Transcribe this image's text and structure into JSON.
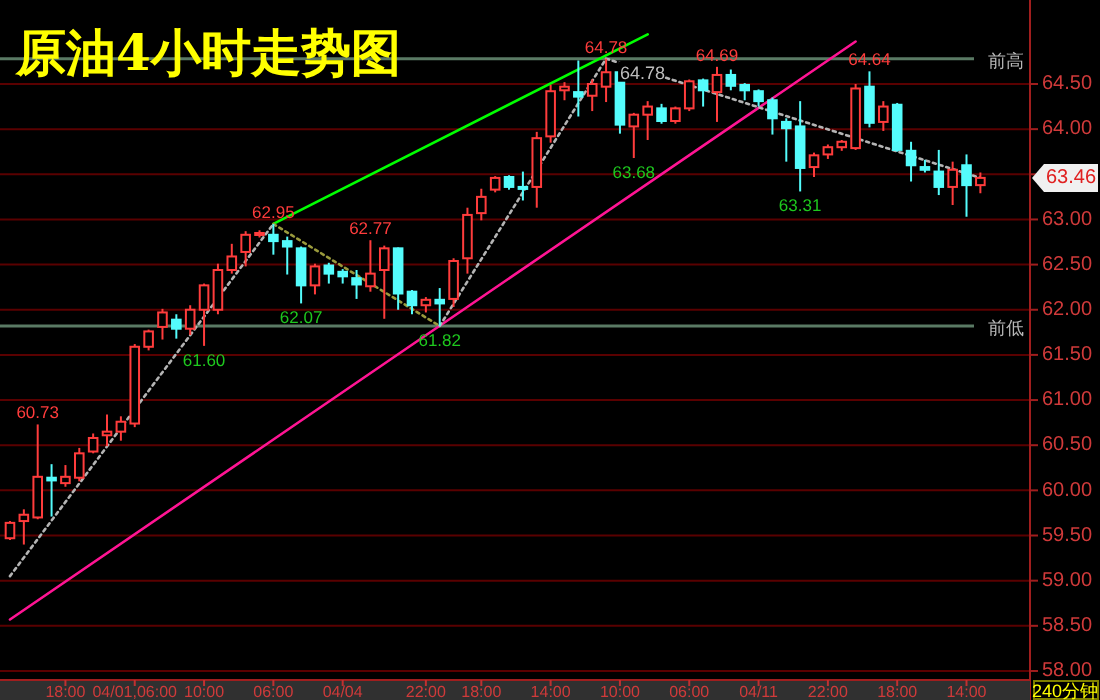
{
  "chart_data": {
    "type": "candlestick",
    "title": "原油4小时走势图",
    "categories": [
      null,
      null,
      null,
      null,
      "18:00",
      null,
      null,
      null,
      null,
      "04/01,06:00",
      null,
      null,
      null,
      null,
      "10:00",
      null,
      null,
      null,
      null,
      "06:00",
      null,
      null,
      null,
      null,
      "04/04",
      null,
      null,
      null,
      null,
      null,
      "22:00",
      null,
      null,
      null,
      "18:00",
      null,
      null,
      null,
      null,
      "14:00",
      null,
      null,
      null,
      null,
      "10:00",
      null,
      null,
      null,
      null,
      "06:00",
      null,
      null,
      null,
      null,
      "04/11",
      null,
      null,
      null,
      null,
      "22:00",
      null,
      null,
      null,
      null,
      "18:00",
      null,
      null,
      null,
      null,
      "14:00",
      null
    ],
    "ohlc": [
      [
        59.47,
        59.66,
        59.45,
        59.64
      ],
      [
        59.66,
        59.79,
        59.4,
        59.73
      ],
      [
        59.7,
        60.73,
        59.68,
        60.15
      ],
      [
        60.14,
        60.29,
        59.71,
        60.11
      ],
      [
        60.08,
        60.28,
        60.04,
        60.15
      ],
      [
        60.14,
        60.47,
        60.1,
        60.41
      ],
      [
        60.43,
        60.63,
        60.41,
        60.58
      ],
      [
        60.61,
        60.84,
        60.49,
        60.65
      ],
      [
        60.65,
        60.82,
        60.55,
        60.76
      ],
      [
        60.74,
        61.62,
        60.7,
        61.59
      ],
      [
        61.59,
        61.78,
        61.55,
        61.76
      ],
      [
        61.81,
        62.01,
        61.67,
        61.97
      ],
      [
        61.89,
        61.95,
        61.68,
        61.79
      ],
      [
        61.79,
        62.05,
        61.72,
        62.0
      ],
      [
        62.0,
        62.29,
        61.6,
        62.27
      ],
      [
        62.0,
        62.51,
        61.95,
        62.44
      ],
      [
        62.44,
        62.73,
        62.4,
        62.59
      ],
      [
        62.64,
        62.87,
        62.48,
        62.83
      ],
      [
        62.83,
        62.88,
        62.8,
        62.85
      ],
      [
        62.83,
        62.95,
        62.61,
        62.76
      ],
      [
        62.76,
        62.81,
        62.39,
        62.7
      ],
      [
        62.68,
        62.7,
        62.07,
        62.27
      ],
      [
        62.27,
        62.51,
        62.17,
        62.48
      ],
      [
        62.49,
        62.52,
        62.29,
        62.4
      ],
      [
        62.42,
        62.45,
        62.29,
        62.37
      ],
      [
        62.35,
        62.44,
        62.12,
        62.28
      ],
      [
        62.26,
        62.77,
        62.2,
        62.4
      ],
      [
        62.44,
        62.71,
        61.9,
        62.68
      ],
      [
        62.68,
        62.69,
        62.0,
        62.18
      ],
      [
        62.2,
        62.22,
        61.95,
        62.05
      ],
      [
        62.05,
        62.14,
        61.97,
        62.11
      ],
      [
        62.11,
        62.24,
        61.82,
        62.07
      ],
      [
        62.12,
        62.57,
        62.03,
        62.54
      ],
      [
        62.57,
        63.13,
        62.4,
        63.05
      ],
      [
        63.07,
        63.34,
        62.99,
        63.25
      ],
      [
        63.33,
        63.48,
        63.3,
        63.46
      ],
      [
        63.47,
        63.49,
        63.33,
        63.36
      ],
      [
        63.36,
        63.53,
        63.21,
        63.35
      ],
      [
        63.36,
        63.97,
        63.13,
        63.9
      ],
      [
        63.92,
        64.49,
        63.85,
        64.42
      ],
      [
        64.43,
        64.52,
        64.32,
        64.47
      ],
      [
        64.41,
        64.76,
        64.14,
        64.36
      ],
      [
        64.37,
        64.55,
        64.2,
        64.5
      ],
      [
        64.47,
        64.78,
        64.3,
        64.63
      ],
      [
        64.63,
        64.65,
        63.95,
        64.05
      ],
      [
        64.03,
        64.18,
        63.68,
        64.16
      ],
      [
        64.16,
        64.31,
        63.88,
        64.25
      ],
      [
        64.23,
        64.28,
        64.06,
        64.09
      ],
      [
        64.09,
        64.25,
        64.06,
        64.23
      ],
      [
        64.23,
        64.55,
        64.2,
        64.53
      ],
      [
        64.54,
        64.56,
        64.25,
        64.43
      ],
      [
        64.41,
        64.69,
        64.08,
        64.6
      ],
      [
        64.6,
        64.66,
        64.43,
        64.48
      ],
      [
        64.49,
        64.51,
        64.32,
        64.43
      ],
      [
        64.42,
        64.44,
        64.25,
        64.31
      ],
      [
        64.32,
        64.35,
        63.94,
        64.12
      ],
      [
        64.08,
        64.12,
        63.64,
        64.01
      ],
      [
        64.03,
        64.31,
        63.31,
        63.57
      ],
      [
        63.58,
        63.74,
        63.47,
        63.71
      ],
      [
        63.72,
        63.83,
        63.67,
        63.8
      ],
      [
        63.8,
        63.88,
        63.76,
        63.86
      ],
      [
        63.79,
        64.5,
        63.77,
        64.45
      ],
      [
        64.47,
        64.64,
        64.02,
        64.07
      ],
      [
        64.08,
        64.31,
        63.98,
        64.25
      ],
      [
        64.27,
        64.29,
        63.75,
        63.77
      ],
      [
        63.76,
        63.86,
        63.42,
        63.6
      ],
      [
        63.58,
        63.66,
        63.52,
        63.55
      ],
      [
        63.53,
        63.77,
        63.27,
        63.36
      ],
      [
        63.36,
        63.64,
        63.16,
        63.55
      ],
      [
        63.6,
        63.72,
        63.03,
        63.38
      ],
      [
        63.38,
        63.52,
        63.29,
        63.46
      ]
    ],
    "series": [
      {
        "type": "line",
        "values": [
          null,
          null,
          null,
          null,
          null,
          null,
          null,
          null,
          null,
          null,
          null,
          null,
          null,
          null,
          null,
          null,
          null,
          null,
          null,
          62.95,
          null,
          null,
          null,
          null,
          null,
          null,
          null,
          null,
          null,
          null,
          null,
          null,
          null,
          null,
          null,
          null,
          null,
          null,
          null,
          null,
          null,
          null,
          null,
          null,
          null,
          null,
          65.05,
          null,
          null,
          null,
          null,
          null,
          null,
          null,
          null,
          null,
          null,
          null,
          null,
          null,
          null,
          null,
          null,
          null,
          null,
          null,
          null,
          null,
          null,
          null,
          null
        ],
        "color": "#00ff00",
        "line_style": "solid"
      },
      {
        "type": "line",
        "values": [
          58.57,
          null,
          null,
          null,
          null,
          null,
          null,
          null,
          null,
          null,
          null,
          null,
          null,
          null,
          null,
          null,
          null,
          null,
          null,
          null,
          null,
          null,
          null,
          null,
          null,
          null,
          null,
          null,
          null,
          null,
          null,
          null,
          null,
          null,
          null,
          null,
          null,
          null,
          null,
          null,
          null,
          null,
          null,
          null,
          null,
          null,
          null,
          null,
          null,
          null,
          null,
          null,
          null,
          null,
          null,
          null,
          null,
          null,
          null,
          null,
          null,
          64.97,
          null,
          null,
          null,
          null,
          null,
          null,
          null,
          null,
          null
        ],
        "color": "#ff1493",
        "line_style": "solid"
      },
      {
        "type": "line",
        "values": [
          59.05,
          null,
          null,
          null,
          null,
          null,
          null,
          null,
          null,
          null,
          null,
          null,
          null,
          null,
          null,
          null,
          null,
          null,
          null,
          62.95,
          null,
          null,
          null,
          null,
          null,
          null,
          null,
          null,
          null,
          null,
          null,
          null,
          null,
          null,
          null,
          null,
          null,
          null,
          null,
          null,
          null,
          null,
          null,
          null,
          null,
          null,
          null,
          null,
          null,
          null,
          null,
          null,
          null,
          null,
          null,
          null,
          null,
          null,
          null,
          null,
          null,
          null,
          null,
          null,
          null,
          null,
          null,
          null,
          null,
          null,
          null
        ],
        "color": "#b4b4b4",
        "line_style": "dotted"
      },
      {
        "type": "line",
        "values": [
          null,
          null,
          null,
          null,
          null,
          null,
          null,
          null,
          null,
          null,
          null,
          null,
          null,
          null,
          null,
          null,
          null,
          null,
          null,
          62.95,
          null,
          null,
          null,
          null,
          null,
          null,
          null,
          null,
          null,
          null,
          null,
          61.82,
          null,
          null,
          null,
          null,
          null,
          null,
          null,
          null,
          null,
          null,
          null,
          null,
          null,
          null,
          null,
          null,
          null,
          null,
          null,
          null,
          null,
          null,
          null,
          null,
          null,
          null,
          null,
          null,
          null,
          null,
          null,
          null,
          null,
          null,
          null,
          null,
          null,
          null,
          null
        ],
        "color": "#9a9a3c",
        "line_style": "dotted"
      },
      {
        "type": "line",
        "values": [
          null,
          null,
          null,
          null,
          null,
          null,
          null,
          null,
          null,
          null,
          null,
          null,
          null,
          null,
          null,
          null,
          null,
          null,
          null,
          null,
          null,
          null,
          null,
          null,
          null,
          null,
          null,
          null,
          null,
          null,
          null,
          61.82,
          null,
          null,
          null,
          null,
          null,
          null,
          null,
          null,
          null,
          null,
          null,
          64.78,
          null,
          null,
          null,
          null,
          null,
          null,
          null,
          null,
          null,
          null,
          null,
          null,
          null,
          null,
          null,
          null,
          null,
          null,
          null,
          null,
          null,
          null,
          null,
          null,
          null,
          null,
          null
        ],
        "color": "#b4b4b4",
        "line_style": "dotted"
      },
      {
        "type": "line",
        "values": [
          null,
          null,
          null,
          null,
          null,
          null,
          null,
          null,
          null,
          null,
          null,
          null,
          null,
          null,
          null,
          null,
          null,
          null,
          null,
          null,
          null,
          null,
          null,
          null,
          null,
          null,
          null,
          null,
          null,
          null,
          null,
          null,
          null,
          null,
          null,
          null,
          null,
          null,
          null,
          null,
          null,
          null,
          null,
          64.78,
          null,
          null,
          null,
          null,
          null,
          null,
          null,
          null,
          null,
          null,
          null,
          null,
          null,
          null,
          null,
          null,
          null,
          null,
          null,
          null,
          null,
          null,
          null,
          null,
          null,
          null,
          63.46
        ],
        "color": "#b4b4b4",
        "line_style": "dotted"
      }
    ],
    "ylim": [
      57.9,
      65.43
    ],
    "yticks": [
      {
        "value": 58,
        "label": "58.00"
      },
      {
        "value": 58.5,
        "label": "58.50"
      },
      {
        "value": 59,
        "label": "59.00"
      },
      {
        "value": 59.5,
        "label": "59.50"
      },
      {
        "value": 60,
        "label": "60.00"
      },
      {
        "value": 60.5,
        "label": "60.50"
      },
      {
        "value": 61,
        "label": "61.00"
      },
      {
        "value": 61.5,
        "label": "61.50"
      },
      {
        "value": 62,
        "label": "62.00"
      },
      {
        "value": 62.5,
        "label": "62.50"
      },
      {
        "value": 63,
        "label": "63.00"
      },
      {
        "value": 63.5,
        "label": null
      },
      {
        "value": 64,
        "label": "64.00"
      },
      {
        "value": 64.5,
        "label": "64.50"
      }
    ],
    "grid": "y",
    "ref_lines": [
      {
        "axis": "y",
        "value": 64.78,
        "label": "前高",
        "color": "#5a7a64"
      },
      {
        "axis": "y",
        "value": 61.82,
        "label": "前低",
        "color": "#5a7a64"
      }
    ],
    "annotations": [
      "60.73",
      "61.60",
      "62.95",
      "62.07",
      "62.77",
      "61.82",
      "64.78",
      "64.78",
      "63.68",
      "64.69",
      "63.31",
      "64.64",
      "63.46",
      "240分钟"
    ]
  }
}
